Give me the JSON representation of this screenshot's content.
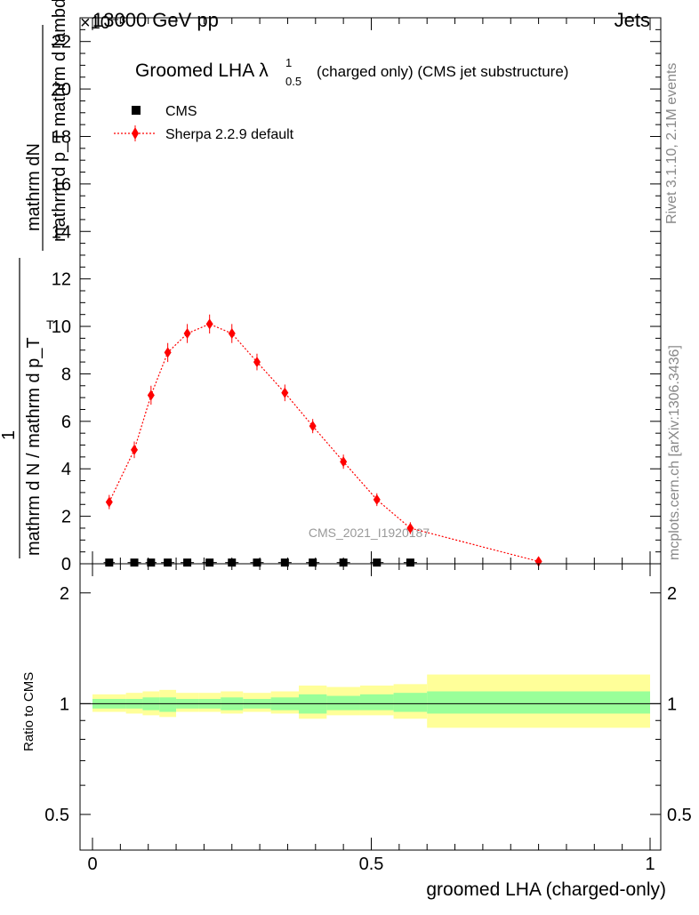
{
  "header": {
    "left": "13000 GeV pp",
    "right": "Jets",
    "exponent": "×10⁻³"
  },
  "side_labels": {
    "rivet": "Rivet 3.1.10,  2.1M events",
    "mcplots": "mcplots.cern.ch [arXiv:1306.3436]"
  },
  "watermark": "CMS_2021_I1920187",
  "chart_data": [
    {
      "type": "scatter",
      "panel": "main",
      "title": "Groomed LHA",
      "title_symbol": "λ",
      "title_sup": "1",
      "title_sub": "0.5",
      "title_suffix": "(charged only) (CMS jet substructure)",
      "ylabel_numerator": "mathrm dN",
      "ylabel_denominator": "mathrm d p_T mathrm d lambda",
      "ylabel_prefactor_num": "1",
      "ylabel_prefactor_den": "mathrm d N / mathrm d p_T",
      "ylabel_sub": "T",
      "xlim": [
        0,
        1
      ],
      "ylim": [
        0,
        23
      ],
      "y_scale_exponent": -3,
      "yticks": [
        "0",
        "2",
        "4",
        "6",
        "8",
        "10",
        "12",
        "14",
        "16",
        "18",
        "20",
        "22"
      ],
      "legend_position": "top-left",
      "series": [
        {
          "name": "CMS",
          "style": "black-square",
          "color": "#000000",
          "x": [
            0.03,
            0.075,
            0.105,
            0.135,
            0.17,
            0.21,
            0.25,
            0.295,
            0.345,
            0.395,
            0.45,
            0.51,
            0.57
          ],
          "y": [
            0.05,
            0.05,
            0.05,
            0.05,
            0.05,
            0.05,
            0.05,
            0.05,
            0.05,
            0.05,
            0.05,
            0.05,
            0.05
          ],
          "xerr": [
            0.01,
            0.012,
            0.01,
            0.012,
            0.012,
            0.013,
            0.012,
            0.012,
            0.012,
            0.012,
            0.012,
            0.012,
            0.012
          ]
        },
        {
          "name": "Sherpa 2.2.9 default",
          "style": "red-diamond-dotted",
          "color": "#ff0000",
          "x": [
            0.03,
            0.075,
            0.105,
            0.135,
            0.17,
            0.21,
            0.25,
            0.295,
            0.345,
            0.395,
            0.45,
            0.51,
            0.57,
            0.8
          ],
          "y": [
            2.6,
            4.8,
            7.1,
            8.9,
            9.7,
            10.1,
            9.7,
            8.5,
            7.2,
            5.8,
            4.3,
            2.7,
            1.5,
            0.1
          ],
          "yerr": [
            0.15,
            0.2,
            0.25,
            0.25,
            0.25,
            0.25,
            0.25,
            0.2,
            0.2,
            0.15,
            0.15,
            0.12,
            0.1,
            0.05
          ]
        }
      ]
    },
    {
      "type": "area",
      "panel": "ratio",
      "ylabel": "Ratio to CMS",
      "xlabel": "groomed LHA (charged-only)",
      "xlim": [
        0,
        1
      ],
      "ylim": [
        0.4,
        2.4
      ],
      "y_scale": "log",
      "yticks": [
        "0.5",
        "1",
        "2"
      ],
      "xticks": [
        "0",
        "0.5",
        "1"
      ],
      "reference_line": 1.0,
      "bands": [
        {
          "name": "outer",
          "color": "#ffff99",
          "edges": [
            0.0,
            0.06,
            0.09,
            0.12,
            0.15,
            0.19,
            0.23,
            0.27,
            0.32,
            0.37,
            0.42,
            0.48,
            0.54,
            0.6,
            1.0
          ],
          "low": [
            0.95,
            0.94,
            0.93,
            0.92,
            0.95,
            0.95,
            0.94,
            0.95,
            0.94,
            0.91,
            0.93,
            0.93,
            0.91,
            0.86
          ],
          "high": [
            1.06,
            1.07,
            1.08,
            1.09,
            1.07,
            1.07,
            1.08,
            1.07,
            1.08,
            1.12,
            1.11,
            1.12,
            1.13,
            1.2
          ]
        },
        {
          "name": "inner",
          "color": "#99ff99",
          "edges": [
            0.0,
            0.06,
            0.09,
            0.12,
            0.15,
            0.19,
            0.23,
            0.27,
            0.32,
            0.37,
            0.42,
            0.48,
            0.54,
            0.6,
            1.0
          ],
          "low": [
            0.97,
            0.97,
            0.96,
            0.95,
            0.97,
            0.97,
            0.96,
            0.97,
            0.96,
            0.94,
            0.96,
            0.96,
            0.95,
            0.94
          ],
          "high": [
            1.03,
            1.03,
            1.04,
            1.04,
            1.03,
            1.03,
            1.04,
            1.03,
            1.04,
            1.06,
            1.05,
            1.06,
            1.07,
            1.08
          ]
        }
      ]
    }
  ]
}
